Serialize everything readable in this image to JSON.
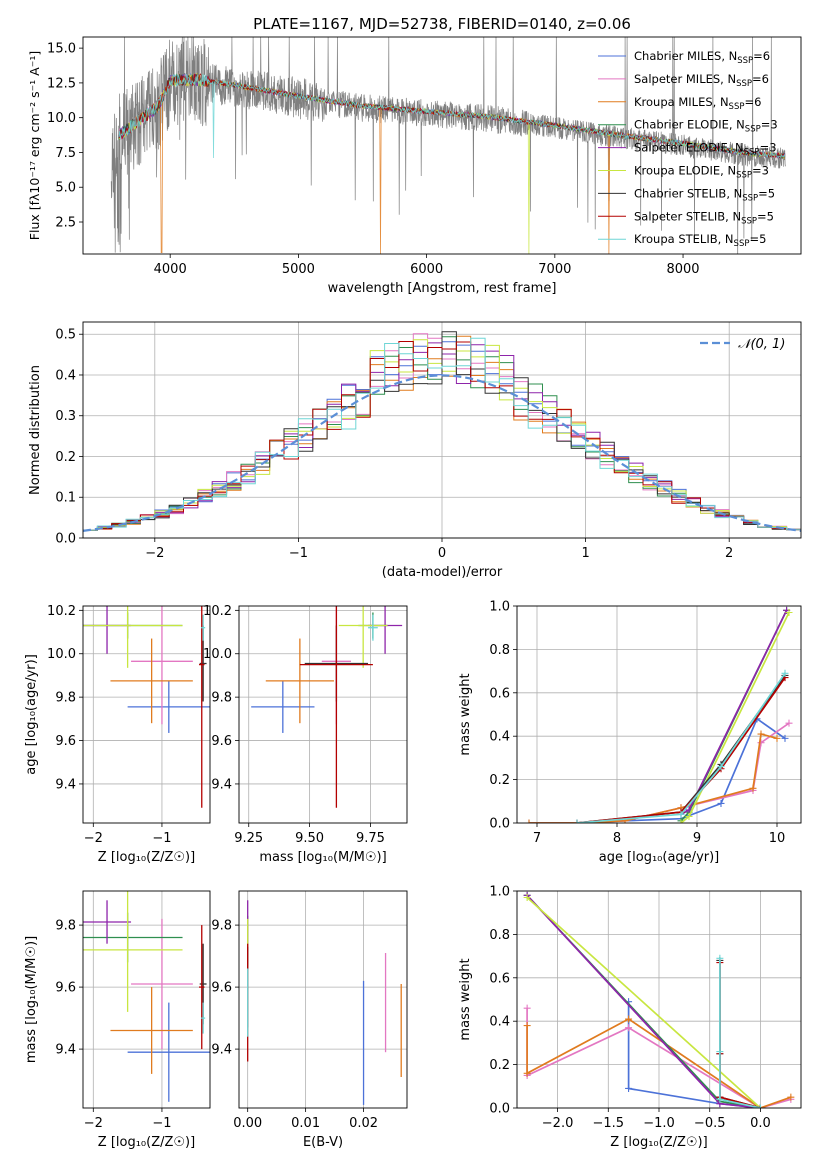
{
  "colors": {
    "CM": "#4c72d8",
    "SM": "#e377c2",
    "KM": "#e07b1f",
    "CE": "#2f8f4f",
    "SE": "#8e24aa",
    "KE": "#c8e640",
    "CS": "#333333",
    "SS": "#b30000",
    "KS": "#6fd6d6",
    "data": "#7f7f7f",
    "gauss": "#5b8fd6",
    "grid": "#b0b0b0"
  },
  "chart_data": [
    {
      "id": "spectrum",
      "type": "line",
      "title": "PLATE=1167, MJD=52738, FIBERID=0140, z=0.06",
      "xlabel": "wavelength [Angstrom, rest frame]",
      "ylabel": "Flux [fλ10⁻¹⁷ erg cm⁻² s⁻¹ A⁻¹]",
      "xlim": [
        3320,
        8920
      ],
      "ylim": [
        0.2,
        15.8
      ],
      "xticks": [
        4000,
        5000,
        6000,
        7000,
        8000
      ],
      "yticks": [
        2.5,
        5.0,
        7.5,
        10.0,
        12.5,
        15.0
      ],
      "xtick_labels": [
        "4000",
        "5000",
        "6000",
        "7000",
        "8000"
      ],
      "ytick_labels": [
        "2.5",
        "5.0",
        "7.5",
        "10.0",
        "12.5",
        "15.0"
      ],
      "grid": false,
      "legend_position": "top-right",
      "legend": [
        {
          "key": "CM",
          "label": "Chabrier MILES, N",
          "sub": "SSP",
          "tail": "=6"
        },
        {
          "key": "SM",
          "label": "Salpeter MILES, N",
          "sub": "SSP",
          "tail": "=6"
        },
        {
          "key": "KM",
          "label": "Kroupa MILES, N",
          "sub": "SSP",
          "tail": "=6"
        },
        {
          "key": "CE",
          "label": "Chabrier ELODIE, N",
          "sub": "SSP",
          "tail": "=3"
        },
        {
          "key": "SE",
          "label": "Salpeter ELODIE, N",
          "sub": "SSP",
          "tail": "=3"
        },
        {
          "key": "KE",
          "label": "Kroupa ELODIE, N",
          "sub": "SSP",
          "tail": "=3"
        },
        {
          "key": "CS",
          "label": "Chabrier STELIB, N",
          "sub": "SSP",
          "tail": "=5"
        },
        {
          "key": "SS",
          "label": "Salpeter STELIB, N",
          "sub": "SSP",
          "tail": "=5"
        },
        {
          "key": "KS",
          "label": "Kroupa STELIB, N",
          "sub": "SSP",
          "tail": "=5"
        }
      ],
      "continuum": [
        [
          3600,
          8.6
        ],
        [
          3750,
          9.6
        ],
        [
          3900,
          10.6
        ],
        [
          4000,
          12.5
        ],
        [
          4200,
          12.6
        ],
        [
          4500,
          12.2
        ],
        [
          5000,
          11.4
        ],
        [
          5500,
          10.7
        ],
        [
          6000,
          10.3
        ],
        [
          6500,
          9.9
        ],
        [
          7000,
          9.3
        ],
        [
          7500,
          8.6
        ],
        [
          8000,
          8.0
        ],
        [
          8500,
          7.3
        ],
        [
          8800,
          7.1
        ]
      ],
      "model_range": [
        3600,
        8800
      ],
      "data_range": [
        3540,
        8800
      ],
      "absorption_dips": [
        {
          "x": 3933,
          "y": 0.3,
          "key": "KM"
        },
        {
          "x": 4340,
          "y": 7.1,
          "key": "KS"
        },
        {
          "x": 5640,
          "y": 0.2,
          "key": "KM"
        },
        {
          "x": 6800,
          "y": 0.2,
          "key": "KE"
        },
        {
          "x": 7420,
          "y": 0.2,
          "key": "KM"
        }
      ]
    },
    {
      "id": "residuals",
      "type": "bar",
      "xlabel": "(data-model)/error",
      "ylabel": "Normed distribution",
      "xlim": [
        -2.5,
        2.5
      ],
      "ylim": [
        0,
        0.53
      ],
      "xticks": [
        -2,
        -1,
        0,
        1,
        2
      ],
      "yticks": [
        0.0,
        0.1,
        0.2,
        0.3,
        0.4,
        0.5
      ],
      "xtick_labels": [
        "−2",
        "−1",
        "0",
        "1",
        "2"
      ],
      "ytick_labels": [
        "0.0",
        "0.1",
        "0.2",
        "0.3",
        "0.4",
        "0.5"
      ],
      "grid": true,
      "legend_position": "top-right",
      "gauss_label": "𝒩(0, 1)",
      "bin_edges_range": [
        -2.5,
        2.5
      ],
      "bin_width": 0.1,
      "series_keys": [
        "CM",
        "SM",
        "KM",
        "CE",
        "SE",
        "KE",
        "CS",
        "SS",
        "KS"
      ]
    },
    {
      "id": "age-vs-Z",
      "type": "scatter",
      "xlabel": "Z [log₁₀(Z/Z☉)]",
      "ylabel": "age  [log₁₀(age/yr)]",
      "xlim": [
        -2.15,
        -0.3
      ],
      "ylim": [
        9.22,
        10.22
      ],
      "xticks": [
        -2,
        -1
      ],
      "yticks": [
        9.4,
        9.6,
        9.8,
        10.0,
        10.2
      ],
      "xtick_labels": [
        "−2",
        "−1"
      ],
      "ytick_labels": [
        "9.4",
        "9.6",
        "9.8",
        "10.0",
        "10.2"
      ],
      "grid": true,
      "points": [
        {
          "key": "CM",
          "x": -0.9,
          "xerr": 0.6,
          "y": 9.755,
          "yerr": 0.12
        },
        {
          "key": "SM",
          "x": -1.0,
          "xerr": 0.45,
          "y": 9.965,
          "yerr": 0.29
        },
        {
          "key": "KM",
          "x": -1.15,
          "xerr": 0.6,
          "y": 9.875,
          "yerr": 0.195
        },
        {
          "key": "CE",
          "x": -1.5,
          "xerr": 0.8,
          "y": 10.13,
          "yerr": 0.06
        },
        {
          "key": "SE",
          "x": -1.8,
          "xerr": 0.35,
          "y": 10.13,
          "yerr": 0.13
        },
        {
          "key": "KE",
          "x": -1.5,
          "xerr": 0.8,
          "y": 10.13,
          "yerr": 0.195
        },
        {
          "key": "CS",
          "x": -0.4,
          "xerr": 0.05,
          "y": 9.955,
          "yerr": 0.175
        },
        {
          "key": "SS",
          "x": -0.42,
          "xerr": 0.04,
          "y": 9.95,
          "yerr": 0.66
        },
        {
          "key": "KS",
          "x": -0.4,
          "xerr": 0.03,
          "y": 10.12,
          "yerr": 0.06
        }
      ]
    },
    {
      "id": "age-vs-mass",
      "type": "scatter",
      "xlabel": "mass [log₁₀(M/M☉)]",
      "ylabel": "",
      "xlim": [
        9.21,
        9.9
      ],
      "ylim": [
        9.22,
        10.22
      ],
      "xticks": [
        9.25,
        9.5,
        9.75
      ],
      "yticks": [
        9.4,
        9.6,
        9.8,
        10.0,
        10.2
      ],
      "xtick_labels": [
        "9.25",
        "9.50",
        "9.75"
      ],
      "ytick_labels": [
        "9.4",
        "9.6",
        "9.8",
        "10.0",
        "10.2"
      ],
      "grid": true,
      "points": [
        {
          "key": "CM",
          "x": 9.39,
          "xerr": 0.13,
          "y": 9.755,
          "yerr": 0.12
        },
        {
          "key": "SM",
          "x": 9.61,
          "xerr": 0.06,
          "y": 9.965,
          "yerr": 0.29
        },
        {
          "key": "KM",
          "x": 9.46,
          "xerr": 0.14,
          "y": 9.875,
          "yerr": 0.195
        },
        {
          "key": "CE",
          "x": 9.76,
          "xerr": 0.06,
          "y": 10.13,
          "yerr": 0.06
        },
        {
          "key": "SE",
          "x": 9.81,
          "xerr": 0.07,
          "y": 10.13,
          "yerr": 0.13
        },
        {
          "key": "KE",
          "x": 9.72,
          "xerr": 0.1,
          "y": 10.13,
          "yerr": 0.195
        },
        {
          "key": "CS",
          "x": 9.61,
          "xerr": 0.13,
          "y": 9.955,
          "yerr": 0.175
        },
        {
          "key": "SS",
          "x": 9.61,
          "xerr": 0.15,
          "y": 9.95,
          "yerr": 0.66
        },
        {
          "key": "KS",
          "x": 9.76,
          "xerr": 0.02,
          "y": 10.12,
          "yerr": 0.06
        }
      ]
    },
    {
      "id": "weight-vs-age",
      "type": "line",
      "xlabel": "age  [log₁₀(age/yr)]",
      "ylabel": "mass weight",
      "xlim": [
        6.75,
        10.3
      ],
      "ylim": [
        0,
        1
      ],
      "xticks": [
        7,
        8,
        9,
        10
      ],
      "yticks": [
        0.0,
        0.2,
        0.4,
        0.6,
        0.8,
        1.0
      ],
      "xtick_labels": [
        "7",
        "8",
        "9",
        "10"
      ],
      "ytick_labels": [
        "0.0",
        "0.2",
        "0.4",
        "0.6",
        "0.8",
        "1.0"
      ],
      "grid": true,
      "series": [
        {
          "key": "CM",
          "x": [
            6.9,
            7.5,
            8.1,
            8.8,
            9.3,
            9.75,
            10.1
          ],
          "y": [
            0.0,
            0.0,
            0.01,
            0.02,
            0.09,
            0.48,
            0.39
          ]
        },
        {
          "key": "SM",
          "x": [
            6.9,
            7.5,
            8.1,
            8.8,
            9.7,
            9.8,
            10.15
          ],
          "y": [
            0.0,
            0.0,
            0.01,
            0.07,
            0.15,
            0.37,
            0.46
          ]
        },
        {
          "key": "KM",
          "x": [
            6.9,
            7.5,
            8.1,
            8.8,
            9.7,
            9.8,
            10.0
          ],
          "y": [
            0.0,
            0.0,
            0.01,
            0.07,
            0.16,
            0.41,
            0.39
          ]
        },
        {
          "key": "CE",
          "x": [
            8.8,
            8.9,
            10.12
          ],
          "y": [
            0.01,
            0.05,
            0.98
          ]
        },
        {
          "key": "SE",
          "x": [
            8.8,
            8.9,
            10.12
          ],
          "y": [
            0.04,
            0.06,
            0.98
          ]
        },
        {
          "key": "KE",
          "x": [
            8.8,
            8.9,
            10.15
          ],
          "y": [
            0.0,
            0.03,
            0.97
          ]
        },
        {
          "key": "CS",
          "x": [
            7.5,
            8.8,
            9.3,
            10.1
          ],
          "y": [
            0.0,
            0.05,
            0.27,
            0.68
          ]
        },
        {
          "key": "SS",
          "x": [
            7.5,
            8.8,
            9.3,
            10.1
          ],
          "y": [
            0.0,
            0.05,
            0.25,
            0.67
          ]
        },
        {
          "key": "KS",
          "x": [
            7.5,
            8.8,
            9.3,
            10.1
          ],
          "y": [
            0.0,
            0.04,
            0.26,
            0.69
          ]
        }
      ]
    },
    {
      "id": "mass-vs-Z",
      "type": "scatter",
      "xlabel": "Z [log₁₀(Z/Z☉)]",
      "ylabel": "mass [log₁₀(M/M☉)]",
      "xlim": [
        -2.15,
        -0.3
      ],
      "ylim": [
        9.21,
        9.91
      ],
      "xticks": [
        -2,
        -1
      ],
      "yticks": [
        9.4,
        9.6,
        9.8
      ],
      "xtick_labels": [
        "−2",
        "−1"
      ],
      "ytick_labels": [
        "9.4",
        "9.6",
        "9.8"
      ],
      "grid": true,
      "points": [
        {
          "key": "CM",
          "x": -0.9,
          "xerr": 0.6,
          "y": 9.39,
          "yerr": 0.16
        },
        {
          "key": "SM",
          "x": -1.0,
          "xerr": 0.45,
          "y": 9.61,
          "yerr": 0.21
        },
        {
          "key": "KM",
          "x": -1.15,
          "xerr": 0.6,
          "y": 9.46,
          "yerr": 0.14
        },
        {
          "key": "CE",
          "x": -1.5,
          "xerr": 0.8,
          "y": 9.76,
          "yerr": 0.08
        },
        {
          "key": "SE",
          "x": -1.8,
          "xerr": 0.35,
          "y": 9.81,
          "yerr": 0.07
        },
        {
          "key": "KE",
          "x": -1.5,
          "xerr": 0.8,
          "y": 9.72,
          "yerr": 0.2
        },
        {
          "key": "CS",
          "x": -0.4,
          "xerr": 0.05,
          "y": 9.61,
          "yerr": 0.13
        },
        {
          "key": "SS",
          "x": -0.42,
          "xerr": 0.04,
          "y": 9.6,
          "yerr": 0.2
        },
        {
          "key": "KS",
          "x": -0.4,
          "xerr": 0.03,
          "y": 9.5,
          "yerr": 0.05
        }
      ]
    },
    {
      "id": "mass-vs-ebv",
      "type": "scatter",
      "xlabel": "E(B-V)",
      "ylabel": "",
      "xlim": [
        -0.0015,
        0.0275
      ],
      "ylim": [
        9.21,
        9.91
      ],
      "xticks": [
        0.0,
        0.01,
        0.02
      ],
      "yticks": [
        9.4,
        9.6,
        9.8
      ],
      "xtick_labels": [
        "0.00",
        "0.01",
        "0.02"
      ],
      "ytick_labels": [
        "9.4",
        "9.6",
        "9.8"
      ],
      "grid": true,
      "points": [
        {
          "key": "CM",
          "x": 0.02,
          "xerr": 0,
          "y": 9.42,
          "yerr": 0.2
        },
        {
          "key": "SM",
          "x": 0.0238,
          "xerr": 0,
          "y": 9.55,
          "yerr": 0.16
        },
        {
          "key": "KM",
          "x": 0.0265,
          "xerr": 0,
          "y": 9.46,
          "yerr": 0.15
        },
        {
          "key": "CE",
          "x": 0.0,
          "xerr": 0,
          "y": 9.75,
          "yerr": 0.08
        },
        {
          "key": "SE",
          "x": 0.0,
          "xerr": 0,
          "y": 9.8,
          "yerr": 0.08
        },
        {
          "key": "KE",
          "x": 0.0,
          "xerr": 0,
          "y": 9.72,
          "yerr": 0.1
        },
        {
          "key": "CS",
          "x": 0.0,
          "xerr": 0,
          "y": 9.6,
          "yerr": 0.13
        },
        {
          "key": "SS",
          "x": 0.0,
          "xerr": 0,
          "y": 9.55,
          "yerr": 0.19
        },
        {
          "key": "KS",
          "x": 0.0,
          "xerr": 0,
          "y": 9.55,
          "yerr": 0.11
        }
      ]
    },
    {
      "id": "weight-vs-Z",
      "type": "line",
      "xlabel": "Z [log₁₀(Z/Z☉)]",
      "ylabel": "mass weight",
      "xlim": [
        -2.4,
        0.4
      ],
      "ylim": [
        0,
        1
      ],
      "xticks": [
        -2.0,
        -1.5,
        -1.0,
        -0.5,
        0.0
      ],
      "yticks": [
        0.0,
        0.2,
        0.4,
        0.6,
        0.8,
        1.0
      ],
      "xtick_labels": [
        "−2.0",
        "−1.5",
        "−1.0",
        "−0.5",
        "0.0"
      ],
      "ytick_labels": [
        "0.0",
        "0.2",
        "0.4",
        "0.6",
        "0.8",
        "1.0"
      ],
      "grid": true,
      "series": [
        {
          "key": "CM",
          "x": [
            -1.3,
            -1.3,
            -0.4,
            0.0
          ],
          "y": [
            0.49,
            0.09,
            0.02,
            0.0
          ]
        },
        {
          "key": "SM",
          "x": [
            -2.3,
            -2.3,
            -1.3,
            0.0,
            0.3
          ],
          "y": [
            0.46,
            0.15,
            0.37,
            0.0,
            0.04
          ]
        },
        {
          "key": "KM",
          "x": [
            -2.3,
            -2.3,
            -1.3,
            0.0,
            0.3
          ],
          "y": [
            0.38,
            0.16,
            0.41,
            0.0,
            0.05
          ]
        },
        {
          "key": "CE",
          "x": [
            -2.3,
            -0.4,
            0.0
          ],
          "y": [
            0.98,
            0.03,
            0.0
          ]
        },
        {
          "key": "SE",
          "x": [
            -2.3,
            -0.4,
            0.0
          ],
          "y": [
            0.98,
            0.02,
            0.0
          ]
        },
        {
          "key": "KE",
          "x": [
            -2.3,
            0.0
          ],
          "y": [
            0.97,
            0.0
          ]
        },
        {
          "key": "CS",
          "x": [
            -0.4,
            -0.4,
            -0.4,
            0.0
          ],
          "y": [
            0.68,
            0.25,
            0.05,
            0.0
          ]
        },
        {
          "key": "SS",
          "x": [
            -0.4,
            -0.4,
            -0.4,
            0.0
          ],
          "y": [
            0.67,
            0.25,
            0.05,
            0.0
          ]
        },
        {
          "key": "KS",
          "x": [
            -0.4,
            -0.4,
            -0.4,
            0.0
          ],
          "y": [
            0.69,
            0.26,
            0.04,
            0.0
          ]
        }
      ]
    }
  ]
}
